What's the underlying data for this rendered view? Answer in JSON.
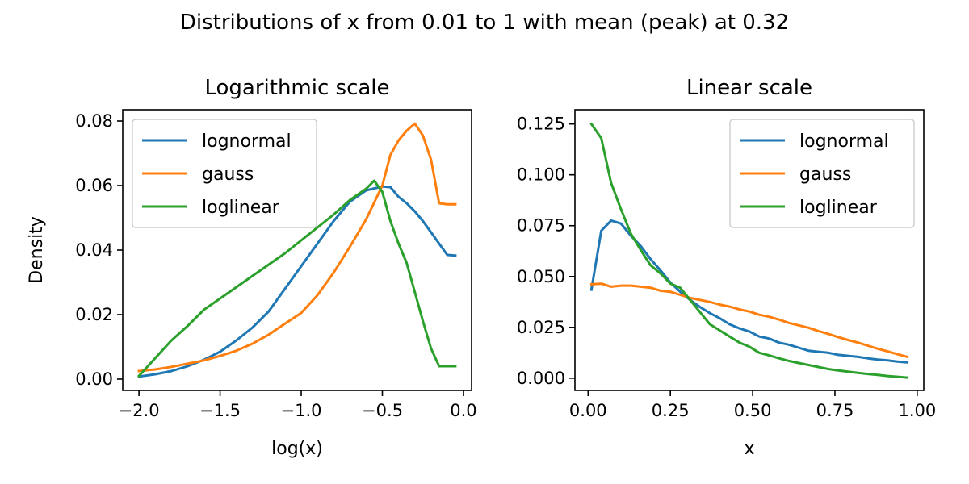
{
  "figure_title": "Distributions of x from 0.01 to 1 with mean (peak) at 0.32",
  "colors": {
    "lognormal": "#1f77b4",
    "gauss": "#ff7f0e",
    "loglinear": "#2ca02c"
  },
  "chart_data": [
    {
      "type": "line",
      "title": "Logarithmic scale",
      "xlabel": "log(x)",
      "ylabel": "Density",
      "xlim": [
        -2.1,
        0.05
      ],
      "ylim": [
        -0.0035,
        0.0835
      ],
      "xticks": [
        -2.0,
        -1.5,
        -1.0,
        -0.5,
        0.0
      ],
      "xtick_labels": [
        "−2.0",
        "−1.5",
        "−1.0",
        "−0.5",
        "0.0"
      ],
      "yticks": [
        0.0,
        0.02,
        0.04,
        0.06,
        0.08
      ],
      "ytick_labels": [
        "0.00",
        "0.02",
        "0.04",
        "0.06",
        "0.08"
      ],
      "legend": "upper-left",
      "series": [
        {
          "name": "lognormal",
          "x": [
            -2.0,
            -1.9,
            -1.8,
            -1.7,
            -1.6,
            -1.5,
            -1.4,
            -1.3,
            -1.2,
            -1.1,
            -1.0,
            -0.9,
            -0.8,
            -0.7,
            -0.6,
            -0.5,
            -0.45,
            -0.4,
            -0.35,
            -0.3,
            -0.25,
            -0.2,
            -0.15,
            -0.1,
            -0.05
          ],
          "values": [
            0.0008,
            0.0015,
            0.0025,
            0.004,
            0.006,
            0.0085,
            0.012,
            0.016,
            0.021,
            0.028,
            0.035,
            0.042,
            0.049,
            0.055,
            0.0585,
            0.0597,
            0.0595,
            0.0565,
            0.0545,
            0.052,
            0.049,
            0.0455,
            0.042,
            0.0385,
            0.0383
          ]
        },
        {
          "name": "gauss",
          "x": [
            -2.0,
            -1.9,
            -1.8,
            -1.7,
            -1.6,
            -1.5,
            -1.4,
            -1.3,
            -1.2,
            -1.1,
            -1.0,
            -0.9,
            -0.8,
            -0.7,
            -0.6,
            -0.5,
            -0.45,
            -0.4,
            -0.35,
            -0.3,
            -0.25,
            -0.2,
            -0.15,
            -0.1,
            -0.05
          ],
          "values": [
            0.0025,
            0.003,
            0.0038,
            0.0048,
            0.0058,
            0.0072,
            0.0088,
            0.011,
            0.0138,
            0.0172,
            0.0205,
            0.026,
            0.033,
            0.041,
            0.0495,
            0.06,
            0.0695,
            0.074,
            0.077,
            0.0792,
            0.0755,
            0.068,
            0.0545,
            0.0542,
            0.0542
          ]
        },
        {
          "name": "loglinear",
          "x": [
            -2.0,
            -1.9,
            -1.8,
            -1.7,
            -1.6,
            -1.5,
            -1.4,
            -1.3,
            -1.2,
            -1.1,
            -1.0,
            -0.9,
            -0.8,
            -0.7,
            -0.6,
            -0.55,
            -0.5,
            -0.45,
            -0.4,
            -0.35,
            -0.3,
            -0.25,
            -0.2,
            -0.15,
            -0.1,
            -0.05
          ],
          "values": [
            0.001,
            0.0065,
            0.012,
            0.0165,
            0.0215,
            0.025,
            0.0285,
            0.032,
            0.0355,
            0.039,
            0.043,
            0.047,
            0.051,
            0.0555,
            0.059,
            0.0615,
            0.058,
            0.049,
            0.042,
            0.036,
            0.027,
            0.018,
            0.0095,
            0.004,
            0.004,
            0.004
          ]
        }
      ]
    },
    {
      "type": "line",
      "title": "Linear scale",
      "xlabel": "x",
      "ylabel": "",
      "xlim": [
        -0.04,
        1.02
      ],
      "ylim": [
        -0.006,
        0.132
      ],
      "xticks": [
        0.0,
        0.25,
        0.5,
        0.75,
        1.0
      ],
      "xtick_labels": [
        "0.00",
        "0.25",
        "0.50",
        "0.75",
        "1.00"
      ],
      "yticks": [
        0.0,
        0.025,
        0.05,
        0.075,
        0.1,
        0.125
      ],
      "ytick_labels": [
        "0.000",
        "0.025",
        "0.050",
        "0.075",
        "0.100",
        "0.125"
      ],
      "legend": "upper-right",
      "series": [
        {
          "name": "lognormal",
          "x": [
            0.01,
            0.04,
            0.07,
            0.1,
            0.13,
            0.16,
            0.19,
            0.22,
            0.25,
            0.28,
            0.31,
            0.34,
            0.37,
            0.4,
            0.43,
            0.46,
            0.49,
            0.52,
            0.55,
            0.58,
            0.61,
            0.64,
            0.67,
            0.7,
            0.73,
            0.76,
            0.79,
            0.82,
            0.85,
            0.88,
            0.91,
            0.94,
            0.97
          ],
          "values": [
            0.0435,
            0.0725,
            0.0775,
            0.076,
            0.07,
            0.065,
            0.0585,
            0.053,
            0.047,
            0.0425,
            0.0385,
            0.035,
            0.032,
            0.0295,
            0.0265,
            0.0245,
            0.023,
            0.0205,
            0.0195,
            0.0175,
            0.0165,
            0.015,
            0.0135,
            0.013,
            0.0125,
            0.0115,
            0.011,
            0.0105,
            0.0098,
            0.0092,
            0.0088,
            0.0082,
            0.0078
          ]
        },
        {
          "name": "gauss",
          "x": [
            0.01,
            0.04,
            0.07,
            0.1,
            0.13,
            0.16,
            0.19,
            0.22,
            0.25,
            0.28,
            0.31,
            0.34,
            0.37,
            0.4,
            0.43,
            0.46,
            0.49,
            0.52,
            0.55,
            0.58,
            0.61,
            0.64,
            0.67,
            0.7,
            0.73,
            0.76,
            0.79,
            0.82,
            0.85,
            0.88,
            0.91,
            0.94,
            0.97
          ],
          "values": [
            0.0462,
            0.0465,
            0.045,
            0.0455,
            0.0455,
            0.045,
            0.0445,
            0.043,
            0.0425,
            0.041,
            0.0395,
            0.0385,
            0.0375,
            0.0362,
            0.0352,
            0.0338,
            0.0328,
            0.0312,
            0.0302,
            0.0288,
            0.0272,
            0.026,
            0.0248,
            0.0232,
            0.0218,
            0.0202,
            0.0188,
            0.0175,
            0.016,
            0.0145,
            0.0132,
            0.0118,
            0.0105
          ]
        },
        {
          "name": "loglinear",
          "x": [
            0.01,
            0.04,
            0.07,
            0.1,
            0.13,
            0.16,
            0.19,
            0.22,
            0.25,
            0.28,
            0.31,
            0.34,
            0.37,
            0.4,
            0.43,
            0.46,
            0.49,
            0.52,
            0.55,
            0.58,
            0.61,
            0.64,
            0.67,
            0.7,
            0.73,
            0.76,
            0.79,
            0.82,
            0.85,
            0.88,
            0.91,
            0.94,
            0.97
          ],
          "values": [
            0.125,
            0.118,
            0.096,
            0.083,
            0.071,
            0.063,
            0.0555,
            0.0515,
            0.0465,
            0.0445,
            0.0385,
            0.0325,
            0.0265,
            0.0235,
            0.0205,
            0.0175,
            0.0155,
            0.0125,
            0.0112,
            0.0098,
            0.0085,
            0.0075,
            0.0065,
            0.0055,
            0.0045,
            0.0038,
            0.0032,
            0.0026,
            0.0021,
            0.0016,
            0.0011,
            0.0007,
            0.0003
          ]
        }
      ]
    }
  ]
}
